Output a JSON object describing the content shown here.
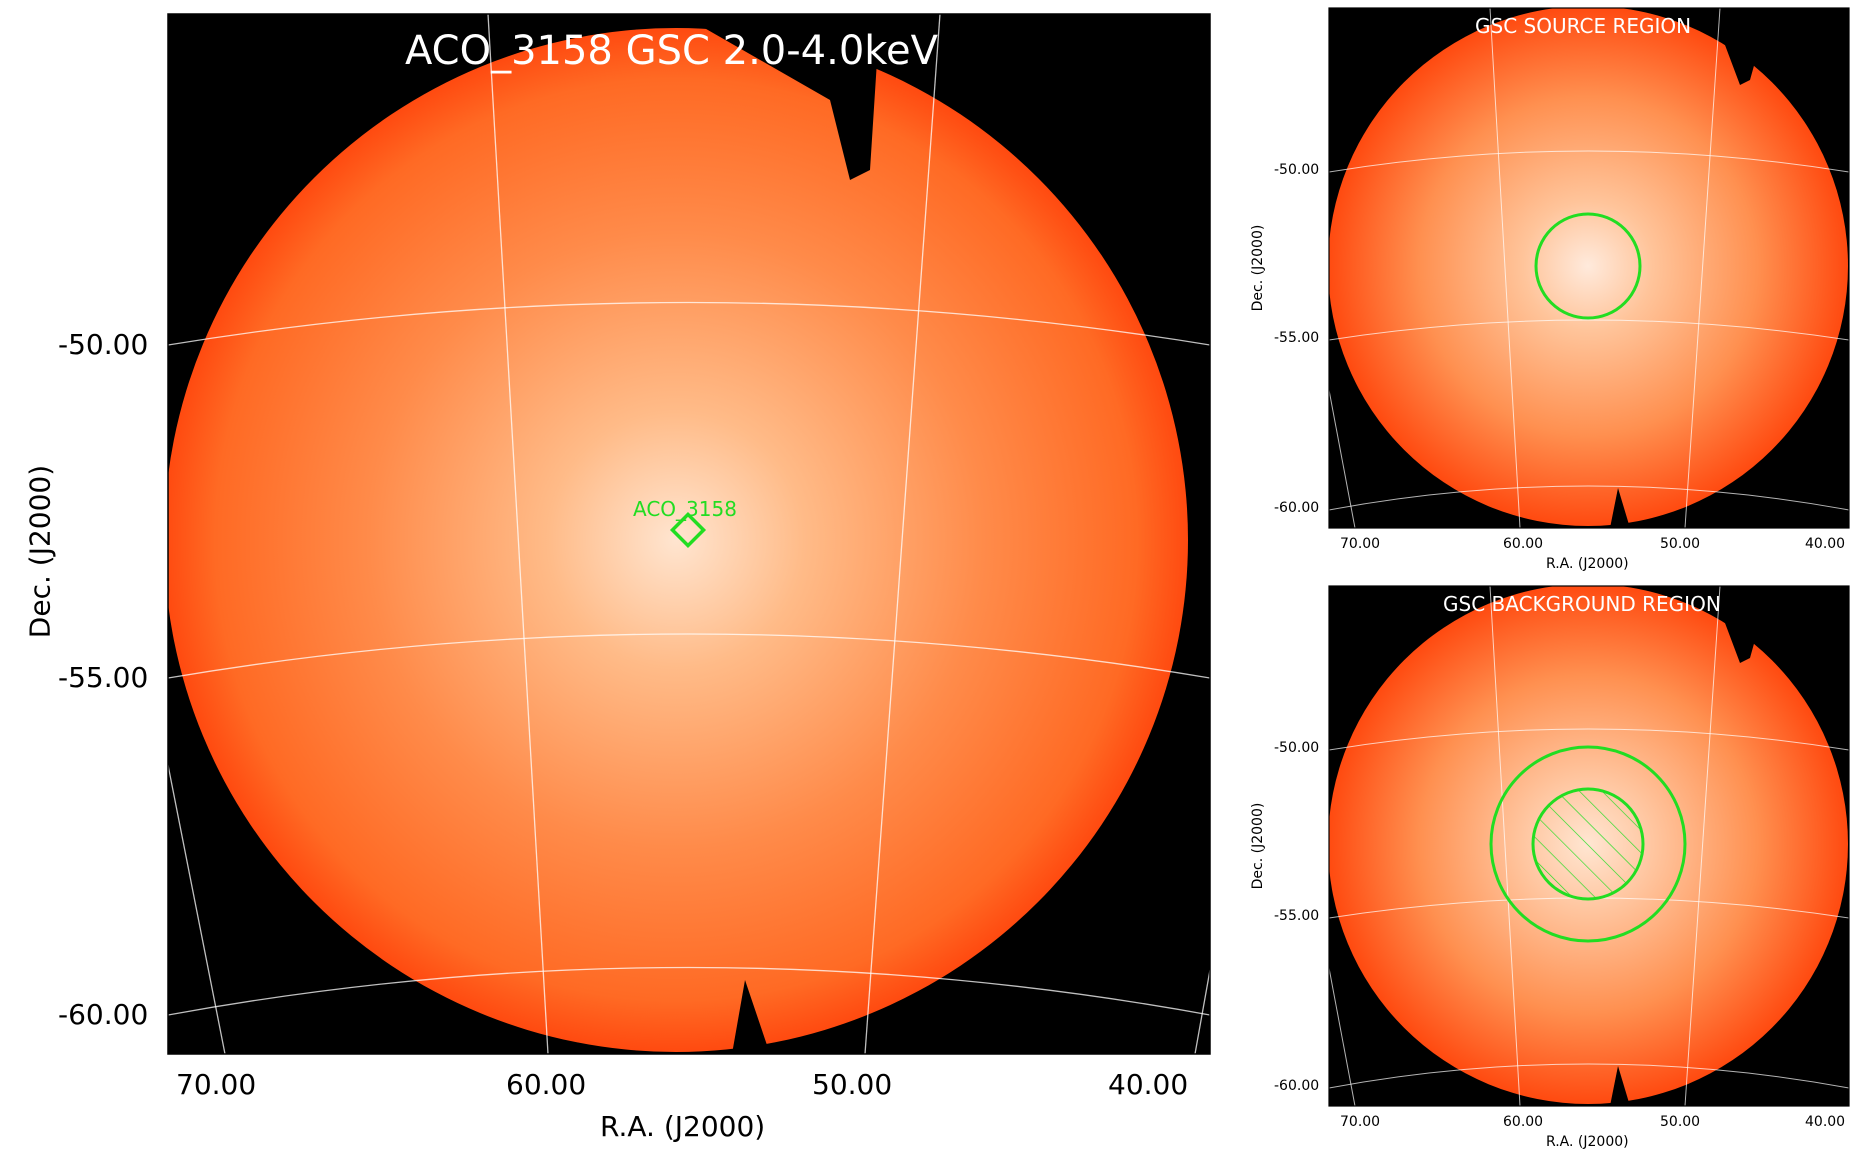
{
  "main_panel": {
    "title": "ACO_3158 GSC 2.0-4.0keV",
    "source_label": "ACO_3158",
    "xlabel": "R.A. (J2000)",
    "ylabel": "Dec. (J2000)",
    "xticks": [
      "70.00",
      "60.00",
      "50.00",
      "40.00"
    ],
    "yticks": [
      "-50.00",
      "-55.00",
      "-60.00"
    ]
  },
  "source_panel": {
    "title": "GSC SOURCE REGION",
    "xlabel": "R.A. (J2000)",
    "ylabel": "Dec. (J2000)",
    "xticks": [
      "70.00",
      "60.00",
      "50.00",
      "40.00"
    ],
    "yticks": [
      "-50.00",
      "-55.00",
      "-60.00"
    ]
  },
  "background_panel": {
    "title": "GSC BACKGROUND REGION",
    "xlabel": "R.A. (J2000)",
    "ylabel": "Dec. (J2000)",
    "xticks": [
      "70.00",
      "60.00",
      "50.00",
      "40.00"
    ],
    "yticks": [
      "-50.00",
      "-55.00",
      "-60.00"
    ]
  },
  "colors": {
    "region": "#22dd22",
    "sky_background": "#000000",
    "field_outer": "#ff5a14",
    "field_center": "#ffe8d8"
  }
}
